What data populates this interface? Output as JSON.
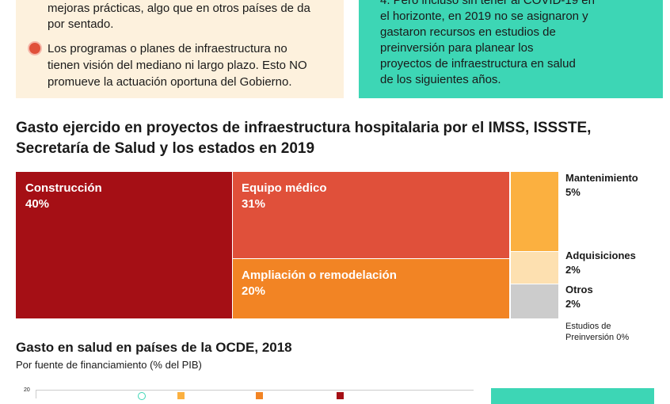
{
  "box_left": {
    "line1": "mejoras prácticas, algo que en otros países de da",
    "line2": "por sentado.",
    "bullet": [
      "Los programas o planes de infraestructura no",
      "tienen visión del mediano ni largo plazo. Esto NO",
      "promueve la actuación oportuna del Gobierno."
    ]
  },
  "box_right": {
    "lines": [
      "4. Pero incluso sin tener al COVID-19 en",
      "el horizonte, en 2019 no se asignaron y",
      "gastaron recursos en estudios de",
      "preinversión para planear los",
      "proyectos de infraestructura en salud",
      "de los siguientes años."
    ]
  },
  "chart_data": {
    "type": "treemap",
    "title": [
      "Gasto ejercido en proyectos de infraestructura hospitalaria por el IMSS, ISSSTE,",
      "Secretaría de Salud y los estados en 2019"
    ],
    "items": [
      {
        "name": "Construcción",
        "value": 40,
        "label": "40%",
        "color": "#a50f15"
      },
      {
        "name": "Equipo médico",
        "value": 31,
        "label": "31%",
        "color": "#e0503a"
      },
      {
        "name": "Ampliación o remodelación",
        "value": 20,
        "label": "20%",
        "color": "#f28424"
      },
      {
        "name": "Mantenimiento",
        "value": 5,
        "label": "5%",
        "color": "#fbb040"
      },
      {
        "name": "Adquisiciones",
        "value": 2,
        "label": "2%",
        "color": "#fde0b0"
      },
      {
        "name": "Otros",
        "value": 2,
        "label": "2%",
        "color": "#cccccc"
      },
      {
        "name": "Estudios de Preinversión",
        "value": 0,
        "label": "0%",
        "color": "#ffffff"
      }
    ]
  },
  "second_chart": {
    "title": "Gasto en salud en países de la OCDE, 2018",
    "subtitle": "Por fuente de financiamiento (% del PIB)",
    "y_tick": "20"
  }
}
